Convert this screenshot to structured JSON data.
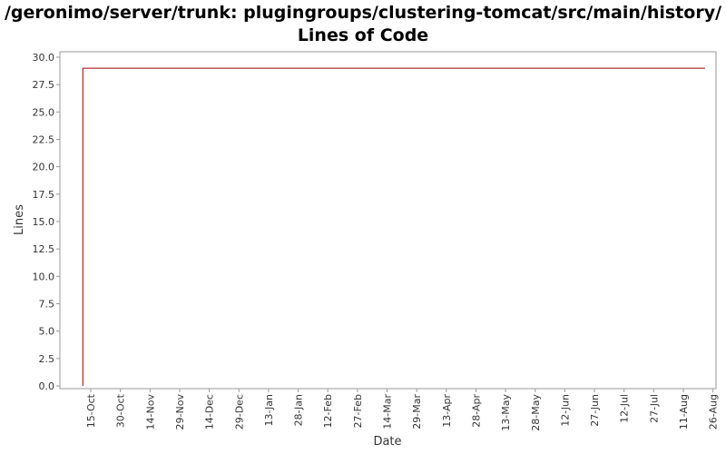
{
  "chart_data": {
    "type": "line",
    "title_line1": "/geronimo/server/trunk: plugingroups/clustering-tomcat/src/main/history/",
    "title_line2": "Lines of Code",
    "xlabel": "Date",
    "ylabel": "Lines",
    "ylim": [
      0,
      30
    ],
    "yticks": [
      "0.0",
      "2.5",
      "5.0",
      "7.5",
      "10.0",
      "12.5",
      "15.0",
      "17.5",
      "20.0",
      "22.5",
      "25.0",
      "27.5",
      "30.0"
    ],
    "xticks": [
      "15-Oct",
      "30-Oct",
      "14-Nov",
      "29-Nov",
      "14-Dec",
      "29-Dec",
      "13-Jan",
      "28-Jan",
      "12-Feb",
      "27-Feb",
      "14-Mar",
      "29-Mar",
      "13-Apr",
      "28-Apr",
      "13-May",
      "28-May",
      "12-Jun",
      "27-Jun",
      "12-Jul",
      "27-Jul",
      "11-Aug",
      "26-Aug"
    ],
    "grid": false,
    "series": [
      {
        "color": "#a00000",
        "points": [
          {
            "x": "11-Oct",
            "y": 0
          },
          {
            "x": "11-Oct",
            "y": 29
          },
          {
            "x": "22-Aug",
            "y": 29
          }
        ]
      }
    ]
  }
}
